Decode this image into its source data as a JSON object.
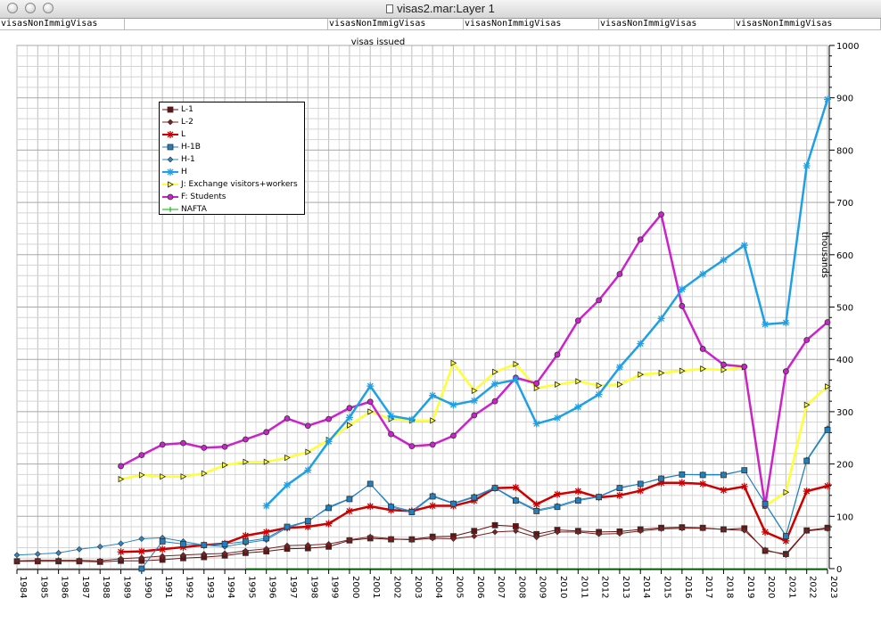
{
  "window": {
    "title": "visas2.mar:Layer 1"
  },
  "tabs": [
    "visasNonImmigVisas",
    "",
    "visasNonImmigVisas",
    "visasNonImmigVisas",
    "visasNonImmigVisas",
    "visasNonImmigVisas"
  ],
  "colors": {
    "L-1": "#6b1010",
    "L-2": "#7a2020",
    "L": "#cc0000",
    "H-1B": "#1f7fbf",
    "H-1": "#2a86c4",
    "H": "#1ea0e6",
    "J": "#ffff33",
    "F": "#cc22cc",
    "NAFTA": "#00b000"
  },
  "chart_data": {
    "type": "line",
    "title": "visas issued",
    "xlabel": "",
    "ylabel": "thousands",
    "y_axis_side": "right",
    "ylim": [
      0,
      1000
    ],
    "yticks": [
      0,
      100,
      200,
      300,
      400,
      500,
      600,
      700,
      800,
      900,
      1000
    ],
    "x": [
      1984,
      1985,
      1986,
      1987,
      1988,
      1989,
      1990,
      1991,
      1992,
      1993,
      1994,
      1995,
      1996,
      1997,
      1998,
      1999,
      2000,
      2001,
      2002,
      2003,
      2004,
      2005,
      2006,
      2007,
      2008,
      2009,
      2010,
      2011,
      2012,
      2013,
      2014,
      2015,
      2016,
      2017,
      2018,
      2019,
      2020,
      2021,
      2022,
      2023
    ],
    "grid": true,
    "legend_position": "top-left",
    "series": [
      {
        "name": "L-1",
        "marker": "square",
        "values": [
          14,
          14,
          14,
          14,
          13,
          15,
          15,
          17,
          20,
          22,
          25,
          30,
          33,
          38,
          39,
          42,
          54,
          58,
          56,
          56,
          61,
          62,
          72,
          83,
          81,
          66,
          74,
          72,
          70,
          71,
          75,
          78,
          79,
          78,
          75,
          77,
          34,
          28,
          73,
          78
        ]
      },
      {
        "name": "L-2",
        "marker": "diamond",
        "values": [
          15,
          16,
          16,
          16,
          15,
          19,
          21,
          24,
          26,
          28,
          29,
          34,
          38,
          44,
          45,
          47,
          55,
          61,
          57,
          55,
          58,
          57,
          62,
          70,
          72,
          60,
          70,
          70,
          66,
          67,
          72,
          76,
          77,
          77,
          75,
          73,
          36,
          26,
          72,
          76
        ]
      },
      {
        "name": "L",
        "marker": "star",
        "values": [
          null,
          null,
          null,
          null,
          null,
          32,
          33,
          37,
          41,
          45,
          48,
          63,
          70,
          78,
          80,
          86,
          110,
          119,
          112,
          110,
          120,
          120,
          130,
          154,
          155,
          123,
          142,
          148,
          136,
          140,
          149,
          164,
          164,
          162,
          150,
          157,
          70,
          53,
          148,
          158
        ]
      },
      {
        "name": "H-1B",
        "marker": "square",
        "values": [
          null,
          null,
          null,
          null,
          null,
          null,
          0,
          52,
          47,
          45,
          47,
          52,
          58,
          80,
          91,
          116,
          133,
          162,
          118,
          108,
          138,
          124,
          136,
          154,
          130,
          110,
          118,
          130,
          137,
          154,
          162,
          172,
          180,
          179,
          179,
          188,
          124,
          62,
          206,
          265
        ]
      },
      {
        "name": "H-1",
        "marker": "diamond",
        "values": [
          26,
          28,
          30,
          37,
          42,
          48,
          57,
          59,
          52,
          45,
          42,
          49,
          55,
          78,
          90,
          118,
          134,
          162,
          120,
          110,
          140,
          125,
          138,
          155,
          132,
          112,
          120,
          132,
          138,
          155,
          162,
          173,
          180,
          180,
          180,
          188,
          125,
          63,
          208,
          268
        ]
      },
      {
        "name": "H",
        "marker": "star",
        "values": [
          null,
          null,
          null,
          null,
          null,
          null,
          null,
          null,
          null,
          null,
          null,
          null,
          120,
          160,
          188,
          243,
          289,
          349,
          292,
          285,
          331,
          313,
          321,
          353,
          361,
          277,
          288,
          309,
          333,
          385,
          430,
          478,
          534,
          563,
          590,
          618,
          467,
          470,
          770,
          897
        ]
      },
      {
        "name": "J: Exchange visitors+workers",
        "marker": "triangle-right",
        "values": [
          null,
          null,
          null,
          null,
          null,
          171,
          179,
          176,
          176,
          182,
          198,
          204,
          204,
          212,
          223,
          246,
          274,
          300,
          286,
          283,
          283,
          393,
          340,
          376,
          391,
          345,
          352,
          358,
          350,
          352,
          371,
          374,
          378,
          382,
          380,
          385,
          120,
          146,
          313,
          348
        ]
      },
      {
        "name": "F: Students",
        "marker": "circle",
        "values": [
          null,
          null,
          null,
          null,
          null,
          196,
          217,
          237,
          240,
          231,
          233,
          247,
          261,
          287,
          273,
          286,
          307,
          319,
          257,
          234,
          237,
          254,
          293,
          320,
          365,
          354,
          409,
          474,
          513,
          563,
          629,
          677,
          502,
          420,
          390,
          386,
          120,
          377,
          437,
          471
        ]
      },
      {
        "name": "NAFTA",
        "marker": "plus",
        "values": [
          null,
          null,
          null,
          null,
          null,
          null,
          null,
          null,
          null,
          null,
          null,
          0,
          0,
          0,
          0,
          0,
          0,
          0,
          0,
          0,
          0,
          0,
          0,
          0,
          0,
          0,
          0,
          0,
          0,
          0,
          0,
          0,
          0,
          0,
          0,
          0,
          0,
          0,
          0,
          0
        ]
      }
    ]
  }
}
